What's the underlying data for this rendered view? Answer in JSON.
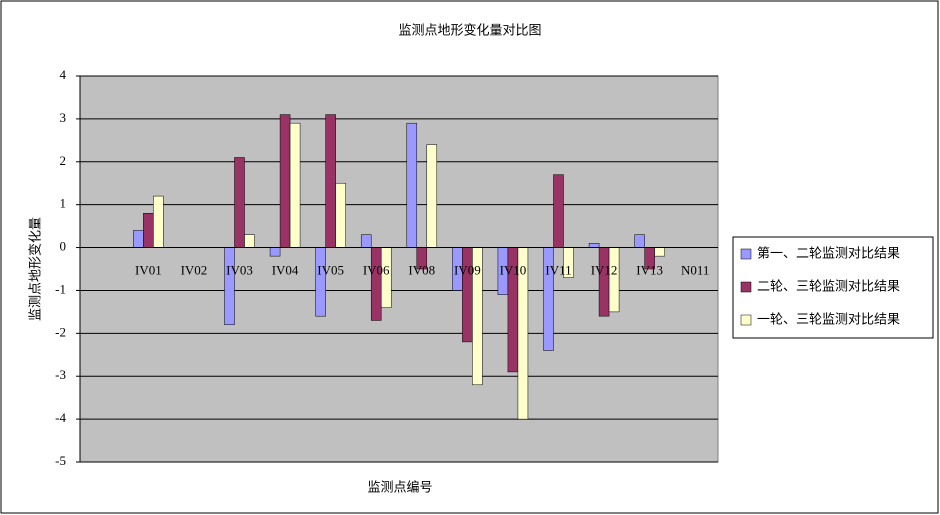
{
  "chart_data": {
    "type": "bar",
    "title": "监测点地形变化量对比图",
    "x_label": "监测点编号",
    "y_label": "监测点地形变化量",
    "categories": [
      null,
      "IV01",
      "IV02",
      "IV03",
      "IV04",
      "IV05",
      "IV06",
      "IV08",
      "IV09",
      "IV10",
      "IV11",
      "IV12",
      "IV13",
      "N011"
    ],
    "series": [
      {
        "name": "第一、二轮监测对比结果",
        "color": "#9999ff",
        "values": [
          null,
          0.4,
          0,
          -1.8,
          -0.2,
          -1.6,
          0.3,
          2.9,
          -1.0,
          -1.1,
          -2.4,
          0.1,
          0.3,
          0
        ]
      },
      {
        "name": "二轮、三轮监测对比结果",
        "color": "#993366",
        "values": [
          null,
          0.8,
          0,
          2.1,
          3.1,
          3.1,
          -1.7,
          -0.5,
          -2.2,
          -2.9,
          1.7,
          -1.6,
          -0.5,
          0
        ]
      },
      {
        "name": "一轮、三轮监测对比结果",
        "color": "#ffffcc",
        "values": [
          null,
          1.2,
          0,
          0.3,
          2.9,
          1.5,
          -1.4,
          2.4,
          -3.2,
          -4.0,
          -0.7,
          -1.5,
          -0.2,
          0
        ]
      }
    ],
    "ylim": [
      -5,
      4
    ],
    "yticks": [
      -5,
      -4,
      -3,
      -2,
      -1,
      0,
      1,
      2,
      3,
      4
    ],
    "grid": true,
    "plot_background": "#c0c0c0",
    "legend": "right"
  }
}
